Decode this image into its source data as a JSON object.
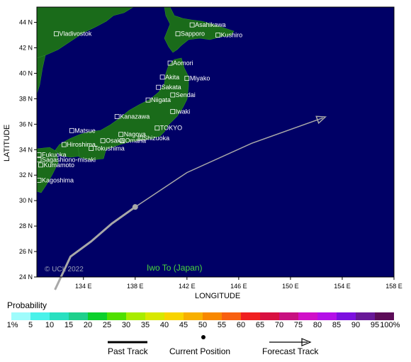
{
  "map": {
    "storm_name": "Iwo To (Japan)",
    "copyright": "© UCL 2022",
    "axis": {
      "x_title": "LONGITUDE",
      "y_title": "LATITUDE",
      "x_ticks": [
        "134 E",
        "138 E",
        "142 E",
        "146 E",
        "150 E",
        "154 E",
        "158 E"
      ],
      "y_ticks": [
        "24 N",
        "26 N",
        "28 N",
        "30 N",
        "32 N",
        "34 N",
        "36 N",
        "38 N",
        "40 N",
        "42 N",
        "44 N"
      ],
      "lon_range": [
        130.4,
        158
      ],
      "lat_range": [
        24,
        45.2
      ]
    },
    "colors": {
      "ocean": "#000066",
      "land": "#1a6b1a",
      "track": "#a8a8a8",
      "label": "#4bd93c"
    },
    "cities": [
      {
        "name": "Vladivostok",
        "lon": 131.9,
        "lat": 43.1
      },
      {
        "name": "Asahikawa",
        "lon": 142.4,
        "lat": 43.8
      },
      {
        "name": "Sapporo",
        "lon": 141.3,
        "lat": 43.1
      },
      {
        "name": "Kushiro",
        "lon": 144.4,
        "lat": 43.0
      },
      {
        "name": "Aomori",
        "lon": 140.7,
        "lat": 40.8
      },
      {
        "name": "Akita",
        "lon": 140.1,
        "lat": 39.7
      },
      {
        "name": "Miyako",
        "lon": 142.0,
        "lat": 39.6
      },
      {
        "name": "Sakata",
        "lon": 139.8,
        "lat": 38.9
      },
      {
        "name": "Sendai",
        "lon": 140.9,
        "lat": 38.3
      },
      {
        "name": "Niigata",
        "lon": 139.0,
        "lat": 37.9
      },
      {
        "name": "Iwaki",
        "lon": 140.9,
        "lat": 37.0
      },
      {
        "name": "Kanazawa",
        "lon": 136.6,
        "lat": 36.6
      },
      {
        "name": "Nagoya",
        "lon": 136.9,
        "lat": 35.2
      },
      {
        "name": "TOKYO",
        "lon": 139.7,
        "lat": 35.7
      },
      {
        "name": "Omaha",
        "lon": 137.0,
        "lat": 34.7
      },
      {
        "name": "Matsue",
        "lon": 133.1,
        "lat": 35.5
      },
      {
        "name": "Osaka",
        "lon": 135.5,
        "lat": 34.7
      },
      {
        "name": "Shizuoka",
        "lon": 138.4,
        "lat": 34.9
      },
      {
        "name": "Tokushima",
        "lon": 134.6,
        "lat": 34.1
      },
      {
        "name": "Hiroshima",
        "lon": 132.5,
        "lat": 34.4
      },
      {
        "name": "Fukuoka",
        "lon": 130.4,
        "lat": 33.6
      },
      {
        "name": "Sagashiono-misaki",
        "lon": 130.2,
        "lat": 33.2
      },
      {
        "name": "Kumamoto",
        "lon": 130.7,
        "lat": 32.8
      },
      {
        "name": "Kagoshima",
        "lon": 130.5,
        "lat": 31.6
      }
    ],
    "track": {
      "past": [
        [
          131.8,
          23.0
        ],
        [
          133.0,
          25.6
        ],
        [
          134.6,
          26.8
        ],
        [
          136.2,
          28.2
        ],
        [
          138.0,
          29.5
        ]
      ],
      "current": [
        138.0,
        29.5
      ],
      "forecast": [
        [
          138.0,
          29.5
        ],
        [
          142.0,
          32.2
        ],
        [
          147.0,
          34.5
        ],
        [
          152.5,
          36.5
        ]
      ]
    }
  },
  "legend": {
    "probability_title": "Probability",
    "scale_labels": [
      "1%",
      "5",
      "10",
      "15",
      "20",
      "25",
      "30",
      "35",
      "40",
      "45",
      "50",
      "55",
      "60",
      "65",
      "70",
      "75",
      "80",
      "85",
      "90",
      "95",
      "100%"
    ],
    "scale_colors": [
      "#9ffcfc",
      "#4af2ea",
      "#28e0c0",
      "#1ed08c",
      "#0cd02c",
      "#50e000",
      "#a8ec00",
      "#d8e800",
      "#f8d400",
      "#f8b000",
      "#f88800",
      "#f86010",
      "#f02020",
      "#d81040",
      "#c81080",
      "#d010c8",
      "#b410e8",
      "#7c10e0",
      "#681898",
      "#5c0c58"
    ],
    "past_track": "Past Track",
    "current_position": "Current Position",
    "forecast_track": "Forecast Track"
  }
}
